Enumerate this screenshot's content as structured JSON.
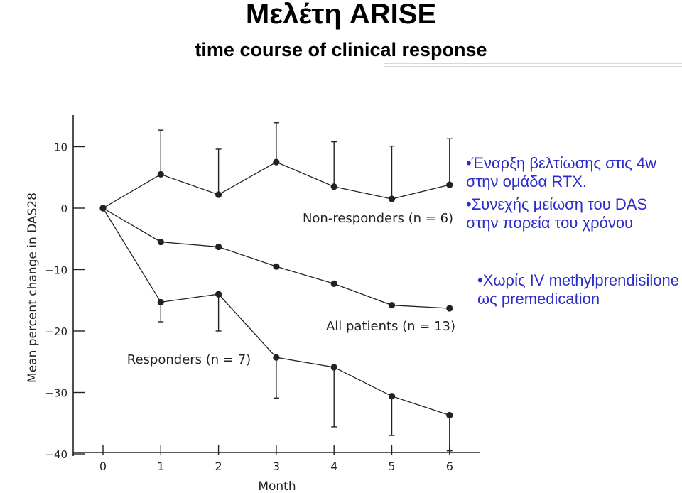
{
  "slide": {
    "title": "Μελέτη ARISE",
    "subtitle": "time course of clinical response"
  },
  "bullets": {
    "item1": "•Έναρξη βελτίωσης στις 4w στην ομάδα RTX.",
    "item2": "•Συνεχής μείωση του DAS στην πορεία του χρόνου",
    "item3": "•Χωρίς IV methylprendisilone ως premedication"
  },
  "colors": {
    "bullet_text": "#2c2cc8",
    "series": "#222222"
  },
  "chart_data": {
    "type": "line",
    "xlabel": "Month",
    "ylabel": "Mean percent change in DAS28",
    "x": [
      0,
      1,
      2,
      3,
      4,
      5,
      6
    ],
    "ylim": [
      -40,
      15
    ],
    "yticks": [
      10,
      0,
      -10,
      -20,
      -30,
      -40
    ],
    "grid": false,
    "series": [
      {
        "name": "Non-responders (n = 6)",
        "values": [
          0,
          5.5,
          2.2,
          7.5,
          3.5,
          1.5,
          3.8
        ],
        "error_upper": [
          null,
          12.7,
          9.6,
          13.9,
          10.8,
          10.1,
          11.3
        ]
      },
      {
        "name": "All patients (n = 13)",
        "values": [
          0,
          -5.5,
          -6.3,
          -9.5,
          -12.3,
          -15.8,
          -16.3
        ]
      },
      {
        "name": "Responders (n = 7)",
        "values": [
          0,
          -15.3,
          -14.0,
          -24.3,
          -25.9,
          -30.6,
          -33.7
        ],
        "error_lower": [
          null,
          -18.5,
          -20.0,
          -30.9,
          -35.6,
          -37.0,
          -39.5
        ]
      }
    ]
  }
}
